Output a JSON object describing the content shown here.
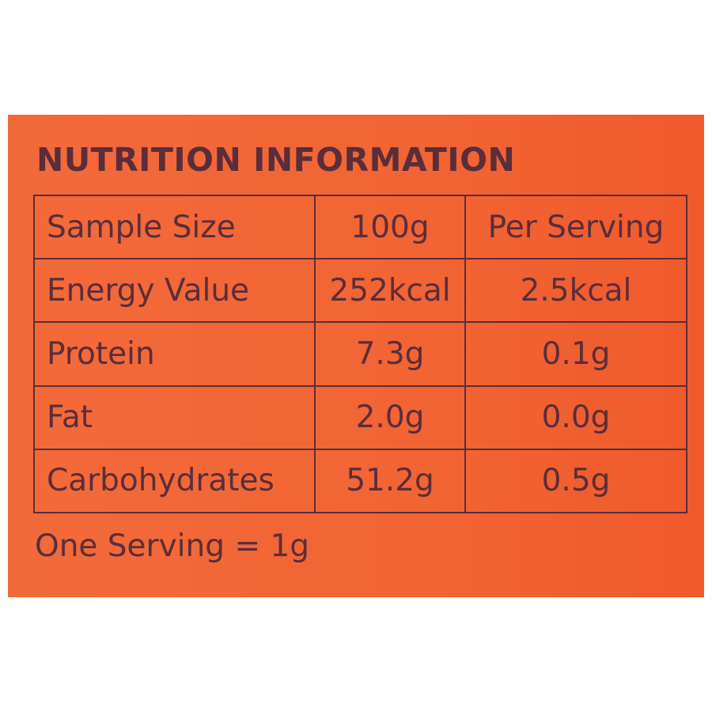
{
  "label": {
    "title": "NUTRITION INFORMATION",
    "rows": [
      [
        "Sample Size",
        "100g",
        "Per Serving"
      ],
      [
        "Energy Value",
        "252kcal",
        "2.5kcal"
      ],
      [
        "Protein",
        "7.3g",
        "0.1g"
      ],
      [
        "Fat",
        "2.0g",
        "0.0g"
      ],
      [
        "Carbohydrates",
        "51.2g",
        "0.5g"
      ]
    ],
    "footer": "One Serving = 1g"
  },
  "colors": {
    "panel": "#f26434",
    "text": "#5a2d3a"
  }
}
